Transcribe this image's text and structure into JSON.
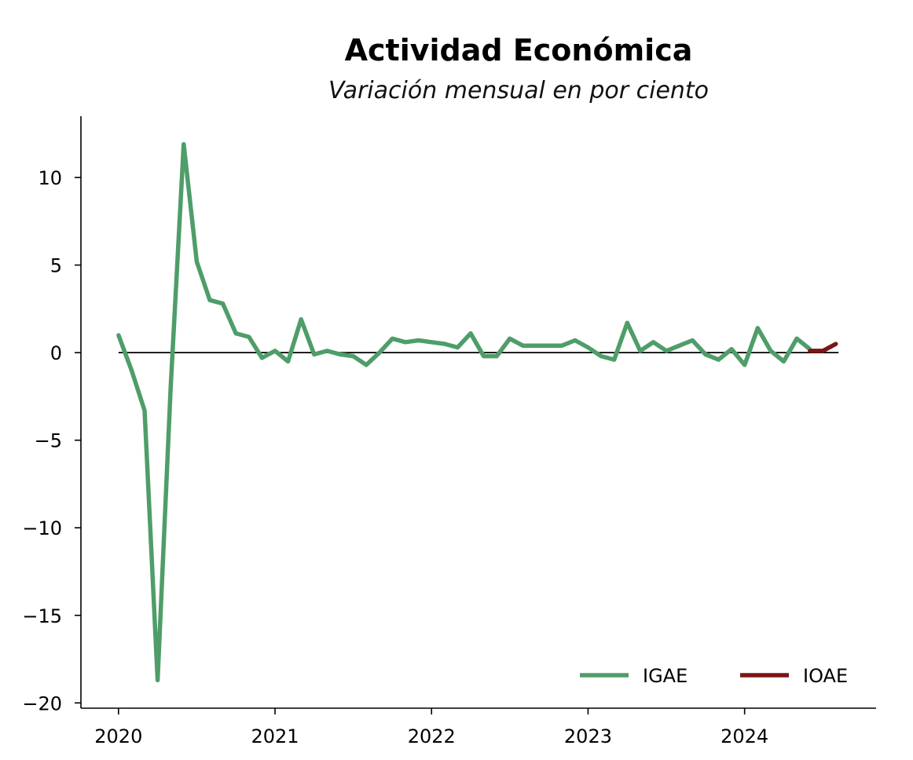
{
  "chart_data": {
    "type": "line",
    "title": "Actividad Económica",
    "subtitle": "Variación mensual en por ciento",
    "xlabel": "",
    "ylabel": "",
    "xlim": [
      2019.76,
      2024.84
    ],
    "ylim": [
      -20.3,
      13.5
    ],
    "x_ticks": [
      {
        "value": 2020,
        "label": "2020"
      },
      {
        "value": 2021,
        "label": "2021"
      },
      {
        "value": 2022,
        "label": "2022"
      },
      {
        "value": 2023,
        "label": "2023"
      },
      {
        "value": 2024,
        "label": "2024"
      }
    ],
    "y_ticks": [
      {
        "value": 10,
        "label": "10"
      },
      {
        "value": 5,
        "label": "5"
      },
      {
        "value": 0,
        "label": "0"
      },
      {
        "value": -5,
        "label": "−5"
      },
      {
        "value": -10,
        "label": "−10"
      },
      {
        "value": -15,
        "label": "−15"
      },
      {
        "value": -20,
        "label": "−20"
      }
    ],
    "zero_line": 0,
    "grid": false,
    "legend_position": "bottom-right",
    "series": [
      {
        "name": "IGAE",
        "color": "#4f9d69",
        "x": [
          2020.0,
          2020.0833,
          2020.1667,
          2020.25,
          2020.3333,
          2020.4167,
          2020.5,
          2020.5833,
          2020.6667,
          2020.75,
          2020.8333,
          2020.9167,
          2021.0,
          2021.0833,
          2021.1667,
          2021.25,
          2021.3333,
          2021.4167,
          2021.5,
          2021.5833,
          2021.6667,
          2021.75,
          2021.8333,
          2021.9167,
          2022.0,
          2022.0833,
          2022.1667,
          2022.25,
          2022.3333,
          2022.4167,
          2022.5,
          2022.5833,
          2022.6667,
          2022.75,
          2022.8333,
          2022.9167,
          2023.0,
          2023.0833,
          2023.1667,
          2023.25,
          2023.3333,
          2023.4167,
          2023.5,
          2023.5833,
          2023.6667,
          2023.75,
          2023.8333,
          2023.9167,
          2024.0,
          2024.0833,
          2024.1667,
          2024.25,
          2024.3333,
          2024.4167
        ],
        "values": [
          1.0,
          -1.0,
          -3.3,
          -18.7,
          -2.0,
          11.9,
          5.2,
          3.0,
          2.8,
          1.1,
          0.9,
          -0.3,
          0.1,
          -0.5,
          1.9,
          -0.1,
          0.1,
          -0.1,
          -0.2,
          -0.7,
          0.0,
          0.8,
          0.6,
          0.7,
          0.6,
          0.5,
          0.3,
          1.1,
          -0.2,
          -0.2,
          0.8,
          0.4,
          0.4,
          0.4,
          0.4,
          0.7,
          0.3,
          -0.2,
          -0.4,
          1.7,
          0.1,
          0.6,
          0.1,
          0.4,
          0.7,
          -0.1,
          -0.4,
          0.2,
          -0.7,
          1.4,
          0.1,
          -0.5,
          0.8,
          0.2
        ]
      },
      {
        "name": "IOAE",
        "color": "#7b1616",
        "x": [
          2024.4167,
          2024.5,
          2024.5833
        ],
        "values": [
          0.1,
          0.1,
          0.5
        ]
      }
    ]
  }
}
